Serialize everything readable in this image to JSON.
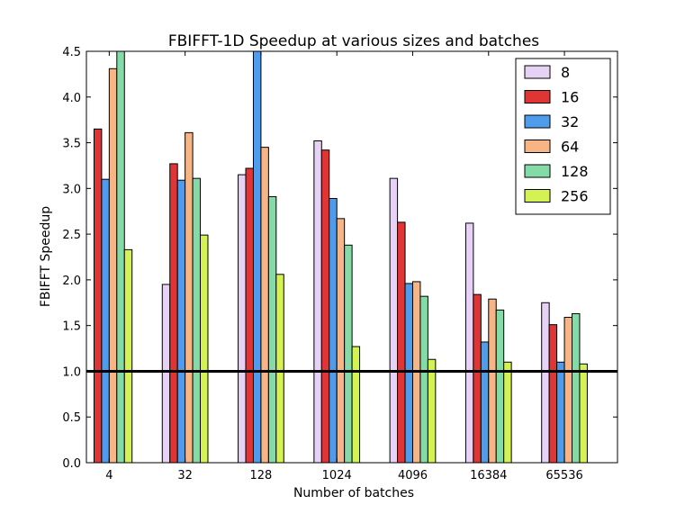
{
  "chart_data": {
    "type": "bar",
    "title": "FBIFFT-1D Speedup at various sizes and batches",
    "xlabel": "Number of batches",
    "ylabel": "FBIFFT Speedup",
    "ylim": [
      0,
      4.5
    ],
    "yticks": [
      "0.0",
      "0.5",
      "1.0",
      "1.5",
      "2.0",
      "2.5",
      "3.0",
      "3.5",
      "4.0",
      "4.5"
    ],
    "categories": [
      "4",
      "32",
      "128",
      "1024",
      "4096",
      "16384",
      "65536"
    ],
    "reference_line": 1.0,
    "legend_position": "top-right",
    "grid": false,
    "series": [
      {
        "name": "8",
        "color": "#e6d2f5",
        "values": [
          0.0,
          1.95,
          3.15,
          3.52,
          3.11,
          2.62,
          1.75
        ]
      },
      {
        "name": "16",
        "color": "#e03535",
        "values": [
          3.65,
          3.27,
          3.22,
          3.42,
          2.63,
          1.84,
          1.51
        ]
      },
      {
        "name": "32",
        "color": "#4f9cec",
        "values": [
          3.1,
          3.09,
          4.5,
          2.89,
          1.96,
          1.32,
          1.1
        ]
      },
      {
        "name": "64",
        "color": "#f7b586",
        "values": [
          4.31,
          3.61,
          3.45,
          2.67,
          1.98,
          1.79,
          1.59
        ]
      },
      {
        "name": "128",
        "color": "#85dba8",
        "values": [
          4.5,
          3.11,
          2.91,
          2.38,
          1.82,
          1.67,
          1.63
        ]
      },
      {
        "name": "256",
        "color": "#d5f255",
        "values": [
          2.33,
          2.49,
          2.06,
          1.27,
          1.13,
          1.1,
          1.08
        ]
      }
    ]
  }
}
